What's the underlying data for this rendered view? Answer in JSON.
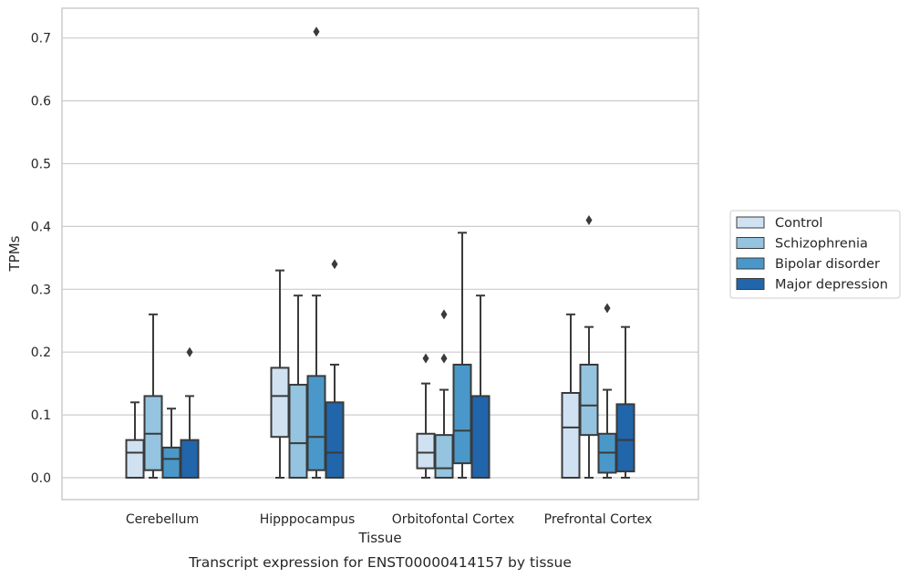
{
  "chart_data": {
    "type": "box",
    "caption": "Transcript expression for ENST00000414157 by tissue",
    "xlabel": "Tissue",
    "ylabel": "TPMs",
    "ylim": [
      -0.035,
      0.745
    ],
    "yticks": [
      "0.0",
      "0.1",
      "0.2",
      "0.3",
      "0.4",
      "0.5",
      "0.6",
      "0.7"
    ],
    "ytick_values": [
      0.0,
      0.1,
      0.2,
      0.3,
      0.4,
      0.5,
      0.6,
      0.7
    ],
    "grid": "horizontal",
    "legend_position": "right",
    "categories": [
      "Cerebellum",
      "Hipppocampus",
      "Orbitofontal Cortex",
      "Prefrontal Cortex"
    ],
    "series": [
      {
        "name": "Control",
        "color": "#d0e1f2",
        "boxes": [
          {
            "whisker_low": 0.0,
            "q1": 0.0,
            "median": 0.04,
            "q3": 0.06,
            "whisker_high": 0.12,
            "outliers": []
          },
          {
            "whisker_low": 0.0,
            "q1": 0.065,
            "median": 0.13,
            "q3": 0.175,
            "whisker_high": 0.33,
            "outliers": []
          },
          {
            "whisker_low": 0.0,
            "q1": 0.015,
            "median": 0.04,
            "q3": 0.07,
            "whisker_high": 0.15,
            "outliers": [
              0.19
            ]
          },
          {
            "whisker_low": 0.0,
            "q1": 0.0,
            "median": 0.08,
            "q3": 0.135,
            "whisker_high": 0.26,
            "outliers": []
          }
        ]
      },
      {
        "name": "Schizophrenia",
        "color": "#94c4df",
        "boxes": [
          {
            "whisker_low": 0.0,
            "q1": 0.012,
            "median": 0.07,
            "q3": 0.13,
            "whisker_high": 0.26,
            "outliers": []
          },
          {
            "whisker_low": 0.0,
            "q1": 0.0,
            "median": 0.055,
            "q3": 0.148,
            "whisker_high": 0.29,
            "outliers": []
          },
          {
            "whisker_low": 0.0,
            "q1": 0.0,
            "median": 0.015,
            "q3": 0.068,
            "whisker_high": 0.14,
            "outliers": [
              0.19,
              0.26
            ]
          },
          {
            "whisker_low": 0.0,
            "q1": 0.068,
            "median": 0.115,
            "q3": 0.18,
            "whisker_high": 0.24,
            "outliers": [
              0.41
            ]
          }
        ]
      },
      {
        "name": "Bipolar disorder",
        "color": "#4a98c9",
        "boxes": [
          {
            "whisker_low": 0.0,
            "q1": 0.0,
            "median": 0.03,
            "q3": 0.048,
            "whisker_high": 0.11,
            "outliers": []
          },
          {
            "whisker_low": 0.0,
            "q1": 0.012,
            "median": 0.065,
            "q3": 0.162,
            "whisker_high": 0.29,
            "outliers": [
              0.71
            ]
          },
          {
            "whisker_low": 0.0,
            "q1": 0.023,
            "median": 0.075,
            "q3": 0.18,
            "whisker_high": 0.39,
            "outliers": []
          },
          {
            "whisker_low": 0.0,
            "q1": 0.008,
            "median": 0.04,
            "q3": 0.07,
            "whisker_high": 0.14,
            "outliers": [
              0.27
            ]
          }
        ]
      },
      {
        "name": "Major depression",
        "color": "#2165ab",
        "boxes": [
          {
            "whisker_low": 0.0,
            "q1": 0.0,
            "median": 0.0,
            "q3": 0.06,
            "whisker_high": 0.13,
            "outliers": [
              0.2
            ]
          },
          {
            "whisker_low": 0.0,
            "q1": 0.0,
            "median": 0.04,
            "q3": 0.12,
            "whisker_high": 0.18,
            "outliers": [
              0.34
            ]
          },
          {
            "whisker_low": 0.0,
            "q1": 0.0,
            "median": 0.0,
            "q3": 0.13,
            "whisker_high": 0.29,
            "outliers": []
          },
          {
            "whisker_low": 0.0,
            "q1": 0.01,
            "median": 0.06,
            "q3": 0.117,
            "whisker_high": 0.24,
            "outliers": []
          }
        ]
      }
    ]
  }
}
